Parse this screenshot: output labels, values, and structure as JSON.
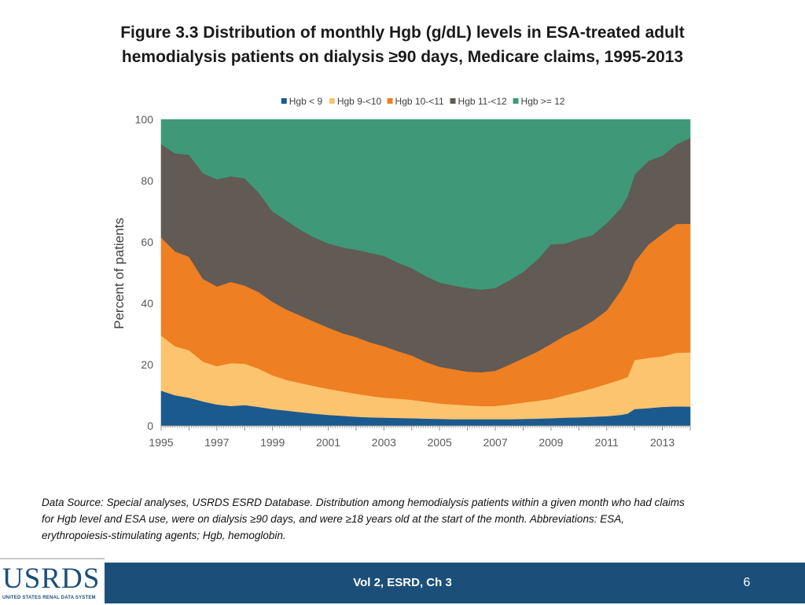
{
  "slide": {
    "title_line1": "Figure 3.3 Distribution of monthly Hgb (g/dL) levels in ESA-treated adult",
    "title_line2": "hemodialysis patients on dialysis ≥90 days, Medicare claims, 1995-2013",
    "source_line1": "Data Source: Special analyses, USRDS ESRD Database. Distribution among hemodialysis patients within a given month who had claims",
    "source_line2": "for Hgb level and ESA use, were on dialysis ≥90 days, and were ≥18 years old at the start of the month. Abbreviations: ESA,",
    "source_line3": "erythropoiesis-stimulating agents; Hgb, hemoglobin."
  },
  "footer": {
    "logo_text": "USRDS",
    "logo_subtext": "UNITED STATES RENAL DATA SYSTEM",
    "center_label": "Vol 2, ESRD, Ch 3",
    "page_number": "6"
  },
  "chart_data": {
    "type": "area",
    "stacked": true,
    "title": "",
    "xlabel": "",
    "ylabel": "Percent of patients",
    "xlim": [
      1995,
      2014
    ],
    "ylim": [
      0,
      100
    ],
    "yticks": [
      0,
      20,
      40,
      60,
      80,
      100
    ],
    "xtick_labels": [
      "1995",
      "1997",
      "1999",
      "2001",
      "2003",
      "2005",
      "2007",
      "2009",
      "2011",
      "2013"
    ],
    "legend_position": "top",
    "x": [
      1995,
      1995.5,
      1996,
      1996.5,
      1997,
      1997.5,
      1998,
      1998.5,
      1999,
      1999.5,
      2000,
      2000.5,
      2001,
      2001.5,
      2002,
      2002.5,
      2003,
      2003.5,
      2004,
      2004.5,
      2005,
      2005.5,
      2006,
      2006.5,
      2007,
      2007.5,
      2008,
      2008.5,
      2009,
      2009.5,
      2010,
      2010.5,
      2011,
      2011.5,
      2011.75,
      2012,
      2012.5,
      2013,
      2013.5,
      2014
    ],
    "series": [
      {
        "name": "Hgb < 9",
        "color": "#1b5a8e",
        "values": [
          11.5,
          10,
          9.2,
          8,
          7,
          6.5,
          6.8,
          6.2,
          5.5,
          5,
          4.5,
          4,
          3.6,
          3.3,
          3,
          2.8,
          2.7,
          2.6,
          2.5,
          2.4,
          2.3,
          2.2,
          2.2,
          2.2,
          2.2,
          2.2,
          2.3,
          2.4,
          2.5,
          2.7,
          2.8,
          3,
          3.2,
          3.6,
          4,
          5.5,
          5.8,
          6.2,
          6.4,
          6.3
        ]
      },
      {
        "name": "Hgb 9-<10",
        "color": "#fcc46e",
        "values": [
          18,
          16,
          15.5,
          13,
          12.5,
          14,
          13.5,
          12.5,
          11,
          10,
          9.5,
          9,
          8.5,
          8,
          7.5,
          7,
          6.5,
          6.3,
          6,
          5.5,
          5,
          4.8,
          4.5,
          4.3,
          4.3,
          4.8,
          5.3,
          5.8,
          6.3,
          7.3,
          8.3,
          9.3,
          10.5,
          11.5,
          12,
          16,
          16.4,
          16.5,
          17.5,
          17.7
        ]
      },
      {
        "name": "Hgb 10-<11",
        "color": "#ee7f22",
        "values": [
          32,
          31,
          30.5,
          27,
          26,
          26.5,
          25.5,
          25,
          24,
          23,
          22,
          21,
          20,
          19,
          18.5,
          17.5,
          16.8,
          15.5,
          14.5,
          13,
          12,
          11.5,
          11,
          11,
          11.5,
          13,
          14.5,
          16,
          18,
          19.5,
          20.5,
          22,
          24,
          29,
          32,
          32,
          37,
          40,
          42,
          42
        ]
      },
      {
        "name": "Hgb 11-<12",
        "color": "#615a55",
        "values": [
          30.5,
          32,
          33.3,
          34.5,
          35,
          34.5,
          35,
          32.5,
          29.5,
          29,
          28,
          27.5,
          27.5,
          28,
          28.5,
          29.2,
          29.5,
          28.9,
          28.5,
          28,
          27.5,
          27.3,
          27.3,
          27,
          27,
          27.5,
          28.2,
          30,
          32.5,
          30,
          29.5,
          28,
          28.5,
          26.9,
          27,
          28.5,
          27.3,
          25.5,
          26,
          28
        ]
      },
      {
        "name": "Hgb >= 12",
        "color": "#3f9979",
        "values": [
          8,
          11,
          11.5,
          17.5,
          19.5,
          18.5,
          19.2,
          23.8,
          30,
          33,
          36,
          38.5,
          40.4,
          41.7,
          42.5,
          43.5,
          44.5,
          46.7,
          48.5,
          51.1,
          53.2,
          54.2,
          55,
          55.5,
          55,
          52.5,
          49.7,
          45.8,
          40.7,
          40.5,
          38.9,
          37.7,
          33.8,
          29,
          25,
          18,
          13.5,
          11.8,
          8.1,
          6
        ]
      }
    ]
  }
}
